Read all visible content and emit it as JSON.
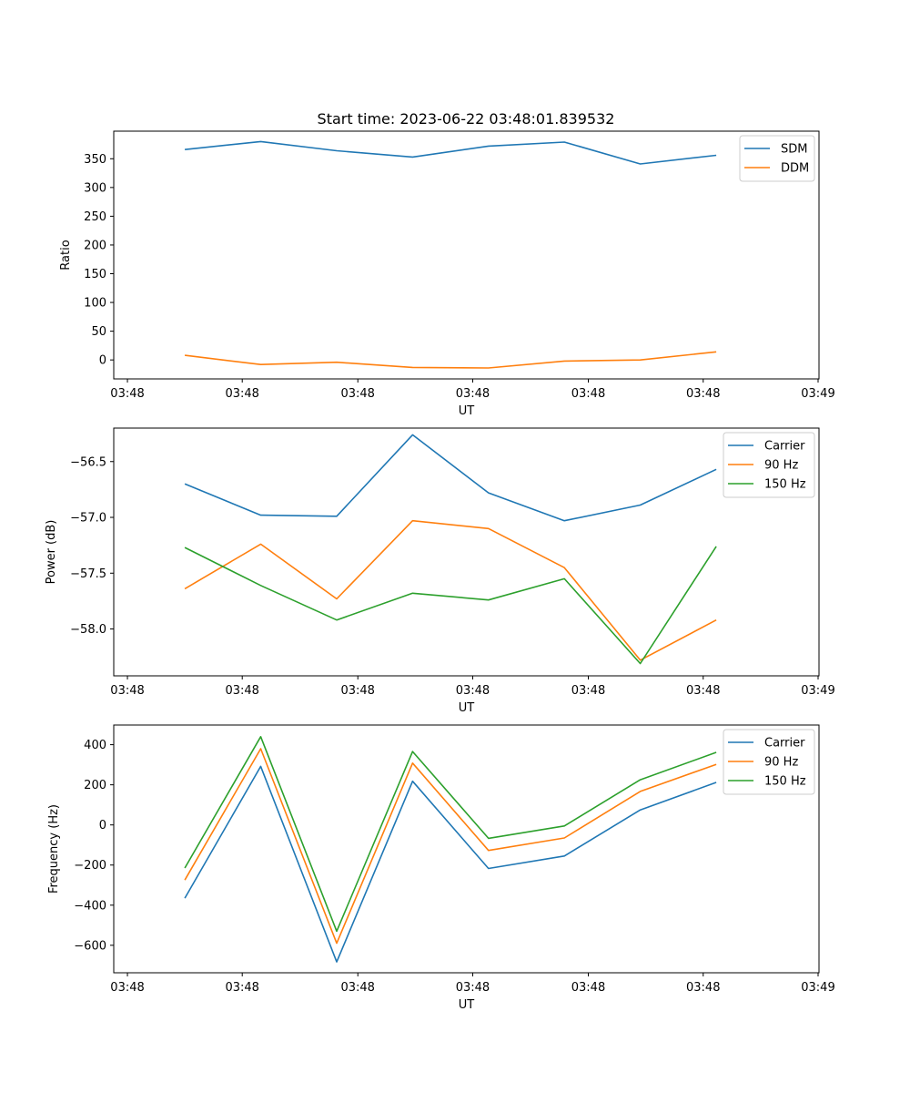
{
  "figure": {
    "title": "Start time: 2023-06-22 03:48:01.839532"
  },
  "chart_data": [
    {
      "type": "line",
      "title": "Start time: 2023-06-22 03:48:01.839532",
      "xlabel": "UT",
      "ylabel": "Ratio",
      "x_tick_labels": [
        "03:48",
        "03:48",
        "03:48",
        "03:48",
        "03:48",
        "03:48",
        "03:49"
      ],
      "y_ticks": [
        0,
        50,
        100,
        150,
        200,
        250,
        300,
        350
      ],
      "ylim": [
        -33,
        398
      ],
      "grid": false,
      "legend_position": "top-right",
      "series": [
        {
          "name": "SDM",
          "color": "#1f77b4",
          "values": [
            366,
            380,
            364,
            353,
            372,
            379,
            341,
            356
          ]
        },
        {
          "name": "DDM",
          "color": "#ff7f0e",
          "values": [
            8,
            -8,
            -4,
            -13,
            -14,
            -2,
            0,
            14
          ]
        }
      ]
    },
    {
      "type": "line",
      "title": "",
      "xlabel": "UT",
      "ylabel": "Power (dB)",
      "x_tick_labels": [
        "03:48",
        "03:48",
        "03:48",
        "03:48",
        "03:48",
        "03:48",
        "03:49"
      ],
      "y_ticks": [
        -56.5,
        -57.0,
        -57.5,
        -58.0
      ],
      "y_tick_labels": [
        "−56.5",
        "−57.0",
        "−57.5",
        "−58.0"
      ],
      "ylim": [
        -58.42,
        -56.2
      ],
      "grid": false,
      "legend_position": "top-right",
      "series": [
        {
          "name": "Carrier",
          "color": "#1f77b4",
          "values": [
            -56.7,
            -56.98,
            -56.99,
            -56.26,
            -56.78,
            -57.03,
            -56.89,
            -56.57
          ]
        },
        {
          "name": "90 Hz",
          "color": "#ff7f0e",
          "values": [
            -57.64,
            -57.24,
            -57.73,
            -57.03,
            -57.1,
            -57.45,
            -58.28,
            -57.92
          ]
        },
        {
          "name": "150 Hz",
          "color": "#2ca02c",
          "values": [
            -57.27,
            -57.61,
            -57.92,
            -57.68,
            -57.74,
            -57.55,
            -58.31,
            -57.26
          ]
        }
      ]
    },
    {
      "type": "line",
      "title": "",
      "xlabel": "UT",
      "ylabel": "Frequency (Hz)",
      "x_tick_labels": [
        "03:48",
        "03:48",
        "03:48",
        "03:48",
        "03:48",
        "03:48",
        "03:49"
      ],
      "y_ticks": [
        400,
        200,
        0,
        -200,
        -400,
        -600
      ],
      "y_tick_labels": [
        "400",
        "200",
        "0",
        "−200",
        "−400",
        "−600"
      ],
      "ylim": [
        -737,
        498
      ],
      "grid": false,
      "legend_position": "top-right",
      "series": [
        {
          "name": "Carrier",
          "color": "#1f77b4",
          "values": [
            -365,
            292,
            -683,
            218,
            -217,
            -155,
            75,
            212
          ]
        },
        {
          "name": "90 Hz",
          "color": "#ff7f0e",
          "values": [
            -275,
            380,
            -590,
            308,
            -127,
            -65,
            167,
            302
          ]
        },
        {
          "name": "150 Hz",
          "color": "#2ca02c",
          "values": [
            -215,
            440,
            -530,
            366,
            -67,
            -5,
            225,
            362
          ]
        }
      ]
    }
  ]
}
